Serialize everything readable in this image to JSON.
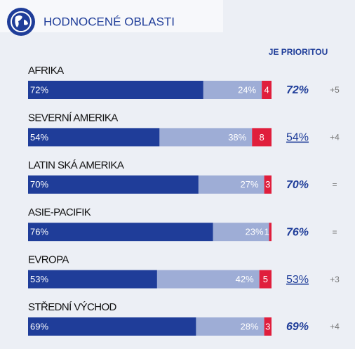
{
  "chart_data": {
    "type": "bar",
    "orientation": "horizontal",
    "stacked": true,
    "title": "HODNOCENÉ OBLASTI",
    "categories": [
      "AFRIKA",
      "SEVERNÍ AMERIKA",
      "LATIN SKÁ AMERIKA",
      "ASIE-PACIFIK",
      "EVROPA",
      "STŘEDNÍ VÝCHOD"
    ],
    "series": [
      {
        "color": "#1f3d99",
        "values": [
          72,
          54,
          70,
          76,
          53,
          69
        ],
        "value_labels": [
          "72%",
          "54%",
          "70%",
          "76%",
          "53%",
          "69%"
        ]
      },
      {
        "color": "#9eadd6",
        "values": [
          24,
          38,
          27,
          23,
          42,
          28
        ],
        "value_labels": [
          "24%",
          "38%",
          "27%",
          "23%",
          "42%",
          "28%"
        ]
      },
      {
        "color": "#e01e3c",
        "values": [
          4,
          8,
          3,
          1,
          5,
          3
        ]
      }
    ],
    "xlim": [
      0,
      100
    ],
    "priority_header": "JE PRIORITOU",
    "priority_labels": [
      "72%",
      "54%",
      "70%",
      "76%",
      "53%",
      "69%"
    ],
    "priority_style": [
      "bold",
      "underline",
      "bold",
      "bold",
      "underline",
      "bold"
    ],
    "changes": [
      "+5",
      "+4",
      "=",
      "=",
      "+3",
      "+4"
    ]
  }
}
